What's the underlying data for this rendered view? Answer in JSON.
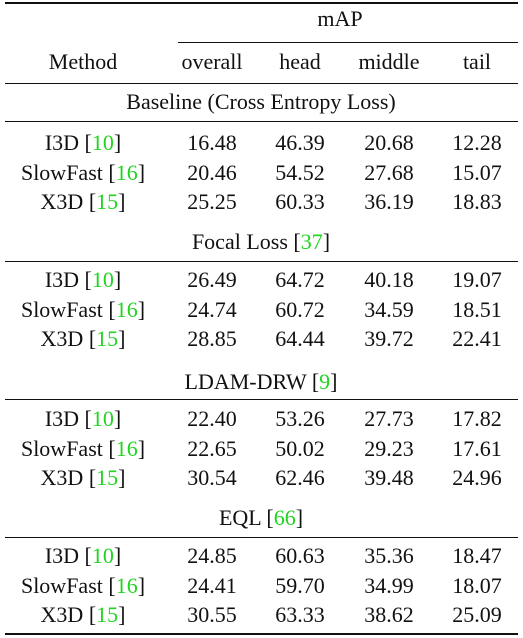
{
  "header": {
    "group_label": "mAP",
    "method_label": "Method",
    "columns": [
      "overall",
      "head",
      "middle",
      "tail"
    ]
  },
  "sections": [
    {
      "title": "Baseline (Cross Entropy Loss)",
      "title_cite": "",
      "rows": [
        {
          "method": "I3D",
          "cite": "10",
          "values": [
            "16.48",
            "46.39",
            "20.68",
            "12.28"
          ]
        },
        {
          "method": "SlowFast",
          "cite": "16",
          "values": [
            "20.46",
            "54.52",
            "27.68",
            "15.07"
          ]
        },
        {
          "method": "X3D",
          "cite": "15",
          "values": [
            "25.25",
            "60.33",
            "36.19",
            "18.83"
          ]
        }
      ]
    },
    {
      "title": "Focal Loss",
      "title_cite": "37",
      "rows": [
        {
          "method": "I3D",
          "cite": "10",
          "values": [
            "26.49",
            "64.72",
            "40.18",
            "19.07"
          ]
        },
        {
          "method": "SlowFast",
          "cite": "16",
          "values": [
            "24.74",
            "60.72",
            "34.59",
            "18.51"
          ]
        },
        {
          "method": "X3D",
          "cite": "15",
          "values": [
            "28.85",
            "64.44",
            "39.72",
            "22.41"
          ]
        }
      ]
    },
    {
      "title": "LDAM-DRW",
      "title_cite": "9",
      "rows": [
        {
          "method": "I3D",
          "cite": "10",
          "values": [
            "22.40",
            "53.26",
            "27.73",
            "17.82"
          ]
        },
        {
          "method": "SlowFast",
          "cite": "16",
          "values": [
            "22.65",
            "50.02",
            "29.23",
            "17.61"
          ]
        },
        {
          "method": "X3D",
          "cite": "15",
          "values": [
            "30.54",
            "62.46",
            "39.48",
            "24.96"
          ]
        }
      ]
    },
    {
      "title": "EQL",
      "title_cite": "66",
      "rows": [
        {
          "method": "I3D",
          "cite": "10",
          "values": [
            "24.85",
            "60.63",
            "35.36",
            "18.47"
          ]
        },
        {
          "method": "SlowFast",
          "cite": "16",
          "values": [
            "24.41",
            "59.70",
            "34.99",
            "18.07"
          ]
        },
        {
          "method": "X3D",
          "cite": "15",
          "values": [
            "30.55",
            "63.33",
            "38.62",
            "25.09"
          ]
        }
      ]
    }
  ]
}
